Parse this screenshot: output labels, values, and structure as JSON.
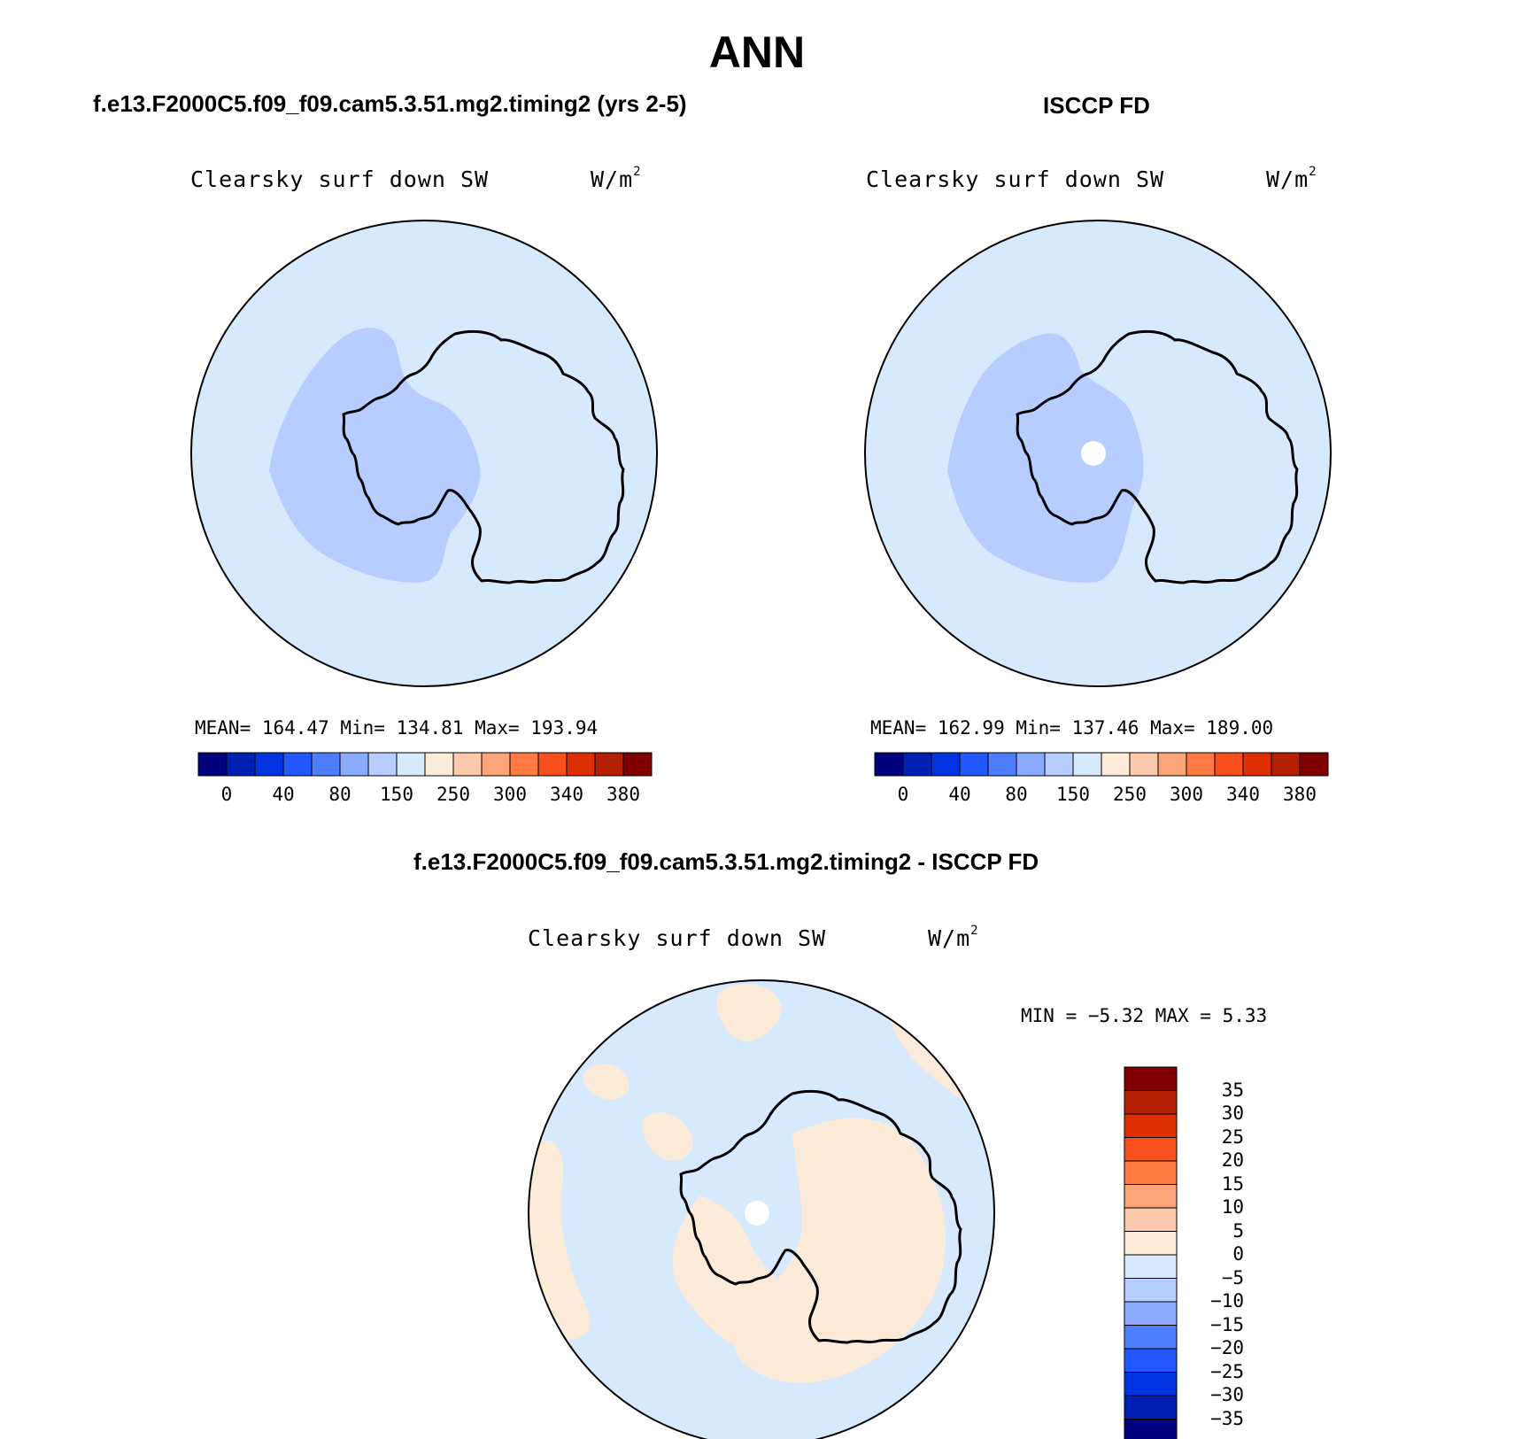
{
  "figure": {
    "season": "ANN"
  },
  "panels": {
    "model": {
      "title": "f.e13.F2000C5.f09_f09.cam5.3.51.mg2.timing2 (yrs 2-5)",
      "variable": "Clearsky surf down SW",
      "units": "W/m",
      "units_sup": "2",
      "stats_text": "MEAN= 164.47   Min= 134.81   Max= 193.94",
      "colorbar_ticks": [
        "0",
        "40",
        "80",
        "150",
        "250",
        "300",
        "340",
        "380"
      ]
    },
    "obs": {
      "title": "ISCCP FD",
      "variable": "Clearsky surf down SW",
      "units": "W/m",
      "units_sup": "2",
      "stats_text": "MEAN= 162.99   Min= 137.46   Max= 189.00",
      "colorbar_ticks": [
        "0",
        "40",
        "80",
        "150",
        "250",
        "300",
        "340",
        "380"
      ]
    },
    "diff": {
      "title": "f.e13.F2000C5.f09_f09.cam5.3.51.mg2.timing2 - ISCCP FD",
      "variable": "Clearsky surf down SW",
      "units": "W/m",
      "units_sup": "2",
      "minmax_text": "MIN =  −5.32 MAX =   5.33",
      "colorbar_ticks": [
        "35",
        "30",
        "25",
        "20",
        "15",
        "10",
        "5",
        "0",
        "−5",
        "−10",
        "−15",
        "−20",
        "−25",
        "−30",
        "−35"
      ]
    }
  },
  "colors": {
    "abs_scale": [
      "#00007f",
      "#0020b4",
      "#0034e0",
      "#2357ff",
      "#4f7dff",
      "#8aaaff",
      "#b8cdff",
      "#d7e9fc",
      "#fdebd9",
      "#fcc9ad",
      "#fca47a",
      "#ff7a42",
      "#f8501c",
      "#de2f04",
      "#b51f02",
      "#800000"
    ],
    "diff_scale_top_to_bottom": [
      "#800000",
      "#b51f02",
      "#de2f04",
      "#f8501c",
      "#ff7a42",
      "#fca47a",
      "#fcc9ad",
      "#fdebd9",
      "#d7e9fc",
      "#b8cdff",
      "#8aaaff",
      "#4f7dff",
      "#2357ff",
      "#0034e0",
      "#0020b4",
      "#00007f"
    ],
    "ocean": "#d7e9fc",
    "inland_band": "#b8cdff",
    "positive_diff": "#fdebd9"
  }
}
